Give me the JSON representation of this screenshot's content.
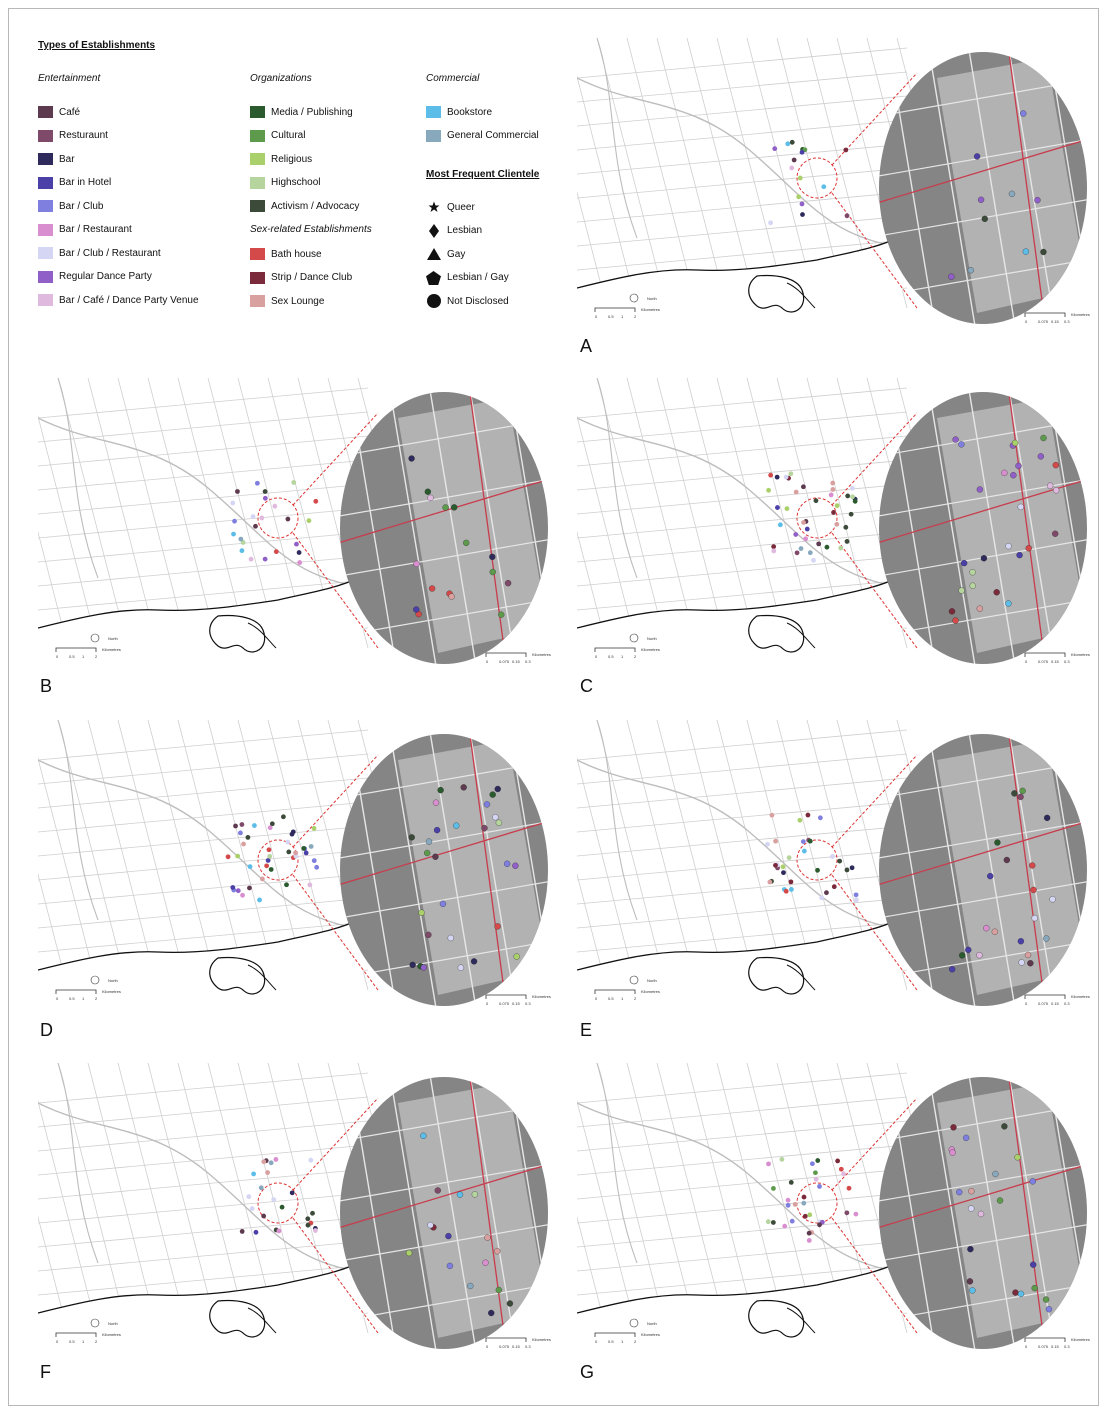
{
  "legend": {
    "title": "Types of Establishments",
    "entertainment": {
      "heading": "Entertainment",
      "items": [
        {
          "label": "Café",
          "color": "#5e3a4f"
        },
        {
          "label": "Resturaunt",
          "color": "#7f4a69"
        },
        {
          "label": "Bar",
          "color": "#2e2a5c"
        },
        {
          "label": "Bar in Hotel",
          "color": "#4a40a8"
        },
        {
          "label": "Bar / Club",
          "color": "#7f7fe0"
        },
        {
          "label": "Bar / Restaurant",
          "color": "#d98fcf"
        },
        {
          "label": "Bar / Club / Restaurant",
          "color": "#d4d6f3"
        },
        {
          "label": "Regular Dance Party",
          "color": "#9060c8"
        },
        {
          "label": "Bar / Café / Dance Party Venue",
          "color": "#e0b9df"
        }
      ]
    },
    "organizations": {
      "heading": "Organizations",
      "items": [
        {
          "label": "Media / Publishing",
          "color": "#2a5a2e"
        },
        {
          "label": "Cultural",
          "color": "#5e9a4c"
        },
        {
          "label": "Religious",
          "color": "#a9d06a"
        },
        {
          "label": "Highschool",
          "color": "#b6d49d"
        },
        {
          "label": "Activism / Advocacy",
          "color": "#3c4a3a"
        }
      ]
    },
    "sex_related": {
      "heading": "Sex-related Establishments",
      "items": [
        {
          "label": "Bath house",
          "color": "#d44a4a"
        },
        {
          "label": "Strip / Dance Club",
          "color": "#7a2a3a"
        },
        {
          "label": "Sex Lounge",
          "color": "#d9a0a0"
        }
      ]
    },
    "commercial": {
      "heading": "Commercial",
      "items": [
        {
          "label": "Bookstore",
          "color": "#5bbde8"
        },
        {
          "label": "General Commercial",
          "color": "#88a8bd"
        }
      ]
    },
    "clientele": {
      "heading": "Most Frequent Clientele",
      "items": [
        {
          "label": "Queer",
          "icon": "star-icon"
        },
        {
          "label": "Lesbian",
          "icon": "diamond-icon"
        },
        {
          "label": "Gay",
          "icon": "triangle-icon"
        },
        {
          "label": "Lesbian / Gay",
          "icon": "pentagon-icon"
        },
        {
          "label": "Not Disclosed",
          "icon": "circle-icon"
        }
      ]
    }
  },
  "scale": {
    "main_labels": [
      "0",
      "0.5",
      "1",
      "2"
    ],
    "main_unit": "Kilometres",
    "inset_labels": [
      "0",
      "0.075",
      "0.15",
      "0.3"
    ],
    "inset_unit": "Kilometres",
    "north": "North"
  },
  "panels": [
    {
      "label": "A",
      "density": 1
    },
    {
      "label": "B",
      "density": 2
    },
    {
      "label": "C",
      "density": 4
    },
    {
      "label": "D",
      "density": 4
    },
    {
      "label": "E",
      "density": 3
    },
    {
      "label": "F",
      "density": 2
    },
    {
      "label": "G",
      "density": 3
    }
  ]
}
